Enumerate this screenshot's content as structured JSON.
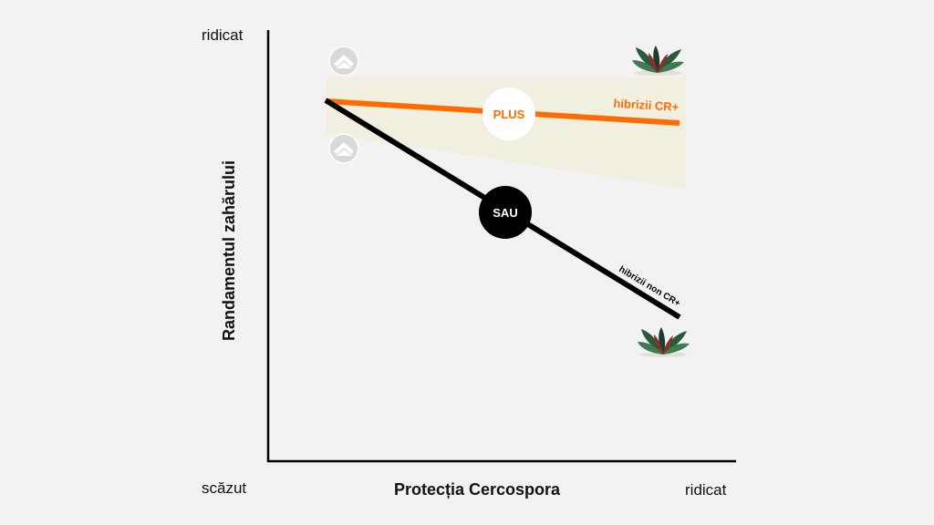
{
  "axes": {
    "y_label": "Randamentul zahărului",
    "y_top_label": "ridicat",
    "x_label": "Protecția Cercospora",
    "x_left_label": "scăzut",
    "x_right_label": "ridicat"
  },
  "lines": {
    "cr_plus": {
      "label": "hibrizii CR+",
      "color": "#ff6b00"
    },
    "non_cr": {
      "label": "hibrizii non CR+",
      "color": "#000000"
    }
  },
  "badges": {
    "plus": "PLUS",
    "sau": "SAU"
  },
  "icons": {
    "up_arrow": "chevron-up-icon",
    "plant": "plant-icon"
  },
  "colors": {
    "background": "#f2f2f2",
    "band": "#f0efe0",
    "axis": "#000000"
  }
}
